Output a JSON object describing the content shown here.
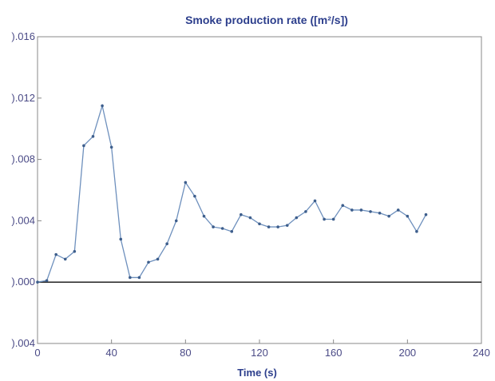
{
  "chart_data": {
    "type": "line",
    "title": "Smoke production rate ([m²/s])",
    "xlabel": "Time (s)",
    "ylabel": "",
    "xlim": [
      0,
      240
    ],
    "ylim": [
      -0.004,
      0.016
    ],
    "xticks": [
      "0",
      "40",
      "80",
      "120",
      "160",
      "200",
      "240"
    ],
    "yticks": [
      {
        "value": 0.016,
        "label": ").016"
      },
      {
        "value": 0.012,
        "label": ").012"
      },
      {
        "value": 0.008,
        "label": ").008"
      },
      {
        "value": 0.004,
        "label": ").004"
      },
      {
        "value": 0.0,
        "label": ").000"
      },
      {
        "value": -0.004,
        "label": ").004"
      }
    ],
    "grid": false,
    "series": [
      {
        "x": [
          0,
          5,
          10,
          15,
          20,
          25,
          30,
          35,
          40,
          45,
          50,
          55,
          60,
          65,
          70,
          75,
          80,
          85,
          90,
          95,
          100,
          105,
          110,
          115,
          120,
          125,
          130,
          135,
          140,
          145,
          150,
          155,
          160,
          165,
          170,
          175,
          180,
          185,
          190,
          195,
          200,
          205,
          210
        ],
        "y": [
          0.0,
          0.0001,
          0.0018,
          0.0015,
          0.002,
          0.0089,
          0.0095,
          0.0115,
          0.0088,
          0.0028,
          0.0003,
          0.0003,
          0.0013,
          0.0015,
          0.0025,
          0.004,
          0.0065,
          0.0056,
          0.0043,
          0.0036,
          0.0035,
          0.0033,
          0.0044,
          0.0042,
          0.0038,
          0.0036,
          0.0036,
          0.0037,
          0.0042,
          0.0046,
          0.0053,
          0.0041,
          0.0041,
          0.005,
          0.0047,
          0.0047,
          0.0046,
          0.0045,
          0.0043,
          0.0047,
          0.0043,
          0.0033,
          0.0044
        ]
      }
    ],
    "colors": {
      "line": "#6e90bd",
      "marker": "#3d5e8c",
      "zero_line": "#222222",
      "axes": "#888888",
      "text": "#2c3e8c"
    }
  }
}
